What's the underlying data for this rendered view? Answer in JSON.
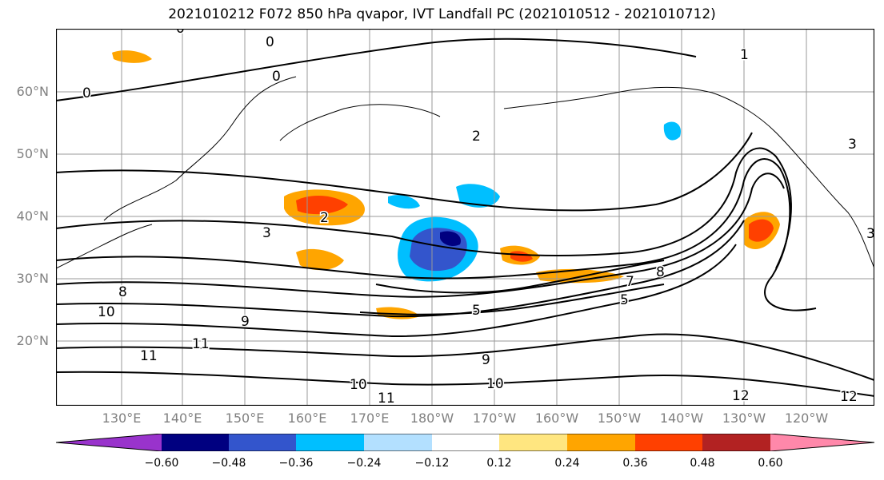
{
  "title": "2021010212 F072 850 hPa qvapor, IVT Landfall PC (2021010512 - 2021010712)",
  "lat_labels": [
    "60°N",
    "50°N",
    "40°N",
    "30°N",
    "20°N"
  ],
  "lon_labels": [
    "130°E",
    "140°E",
    "150°E",
    "160°E",
    "170°E",
    "180°W",
    "170°W",
    "160°W",
    "150°W",
    "140°W",
    "130°W",
    "120°W"
  ],
  "colorbar": {
    "colors": [
      "#9933cc",
      "#000080",
      "#3355cc",
      "#00bfff",
      "#b3e0ff",
      "#ffffff",
      "#ffe680",
      "#ffa500",
      "#ff4000",
      "#b22222",
      "#ff88aa"
    ],
    "tick_labels": [
      "−0.60",
      "−0.48",
      "−0.36",
      "−0.24",
      "−0.12",
      "0.12",
      "0.24",
      "0.36",
      "0.48",
      "0.60"
    ]
  },
  "contour_labels": [
    "0",
    "0",
    "0",
    "0",
    "1",
    "2",
    "2",
    "3",
    "3",
    "3",
    "5",
    "5",
    "7",
    "8",
    "8",
    "9",
    "9",
    "10",
    "10",
    "10",
    "11",
    "11",
    "11",
    "12",
    "12"
  ]
}
